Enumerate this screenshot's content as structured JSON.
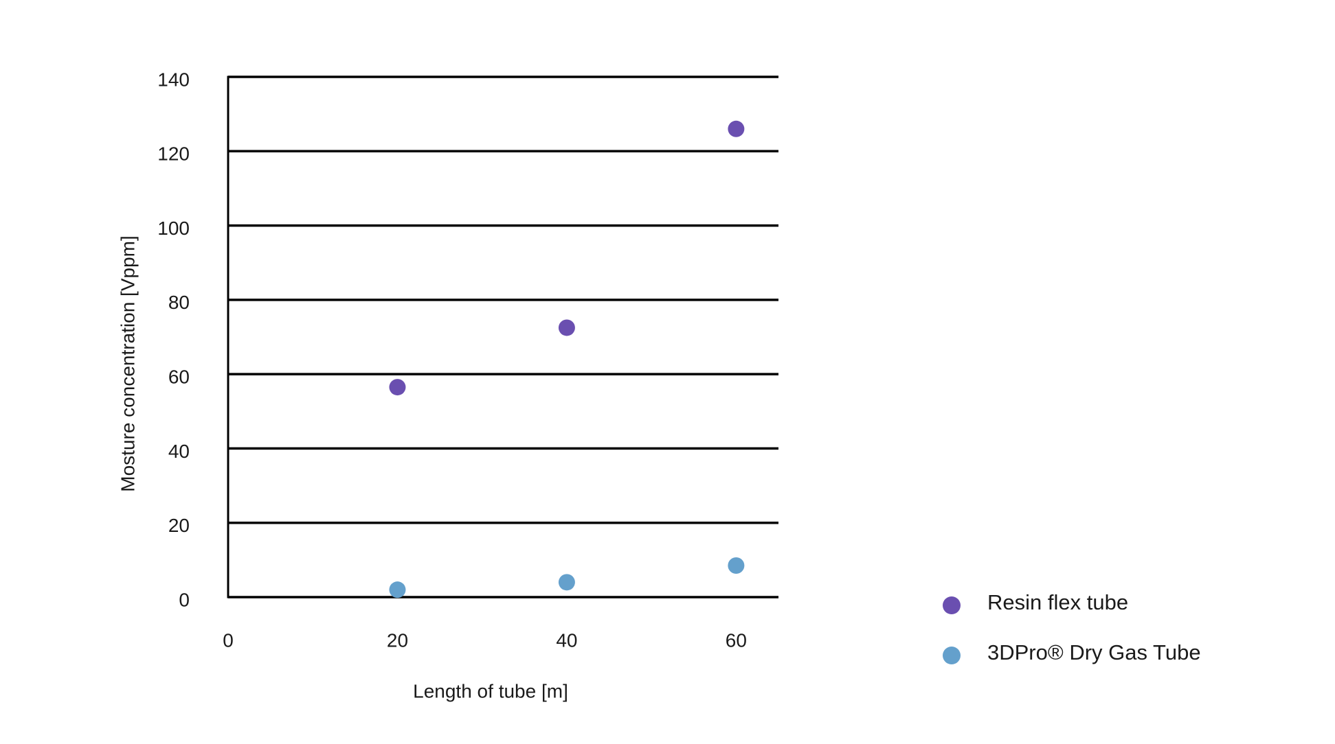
{
  "chart_data": {
    "type": "scatter",
    "x_label": "Length of tube [m]",
    "y_label": "Mosture concentration [Vppm]",
    "xlim": [
      0,
      65
    ],
    "xticks": [
      0,
      20,
      40,
      60
    ],
    "ylim": [
      0,
      140
    ],
    "yticks": [
      0,
      20,
      40,
      60,
      80,
      100,
      120,
      140
    ],
    "grid": true,
    "legend": "bottom-right",
    "series": [
      {
        "name": "Resin flex tube",
        "color": "#6a4fb0",
        "x": [
          20,
          40,
          60
        ],
        "values": [
          56.5,
          72.5,
          126
        ]
      },
      {
        "name": "3DPro® Dry Gas Tube",
        "color": "#64a0cc",
        "x": [
          20,
          40,
          60
        ],
        "values": [
          2,
          4,
          8.5
        ]
      }
    ]
  }
}
